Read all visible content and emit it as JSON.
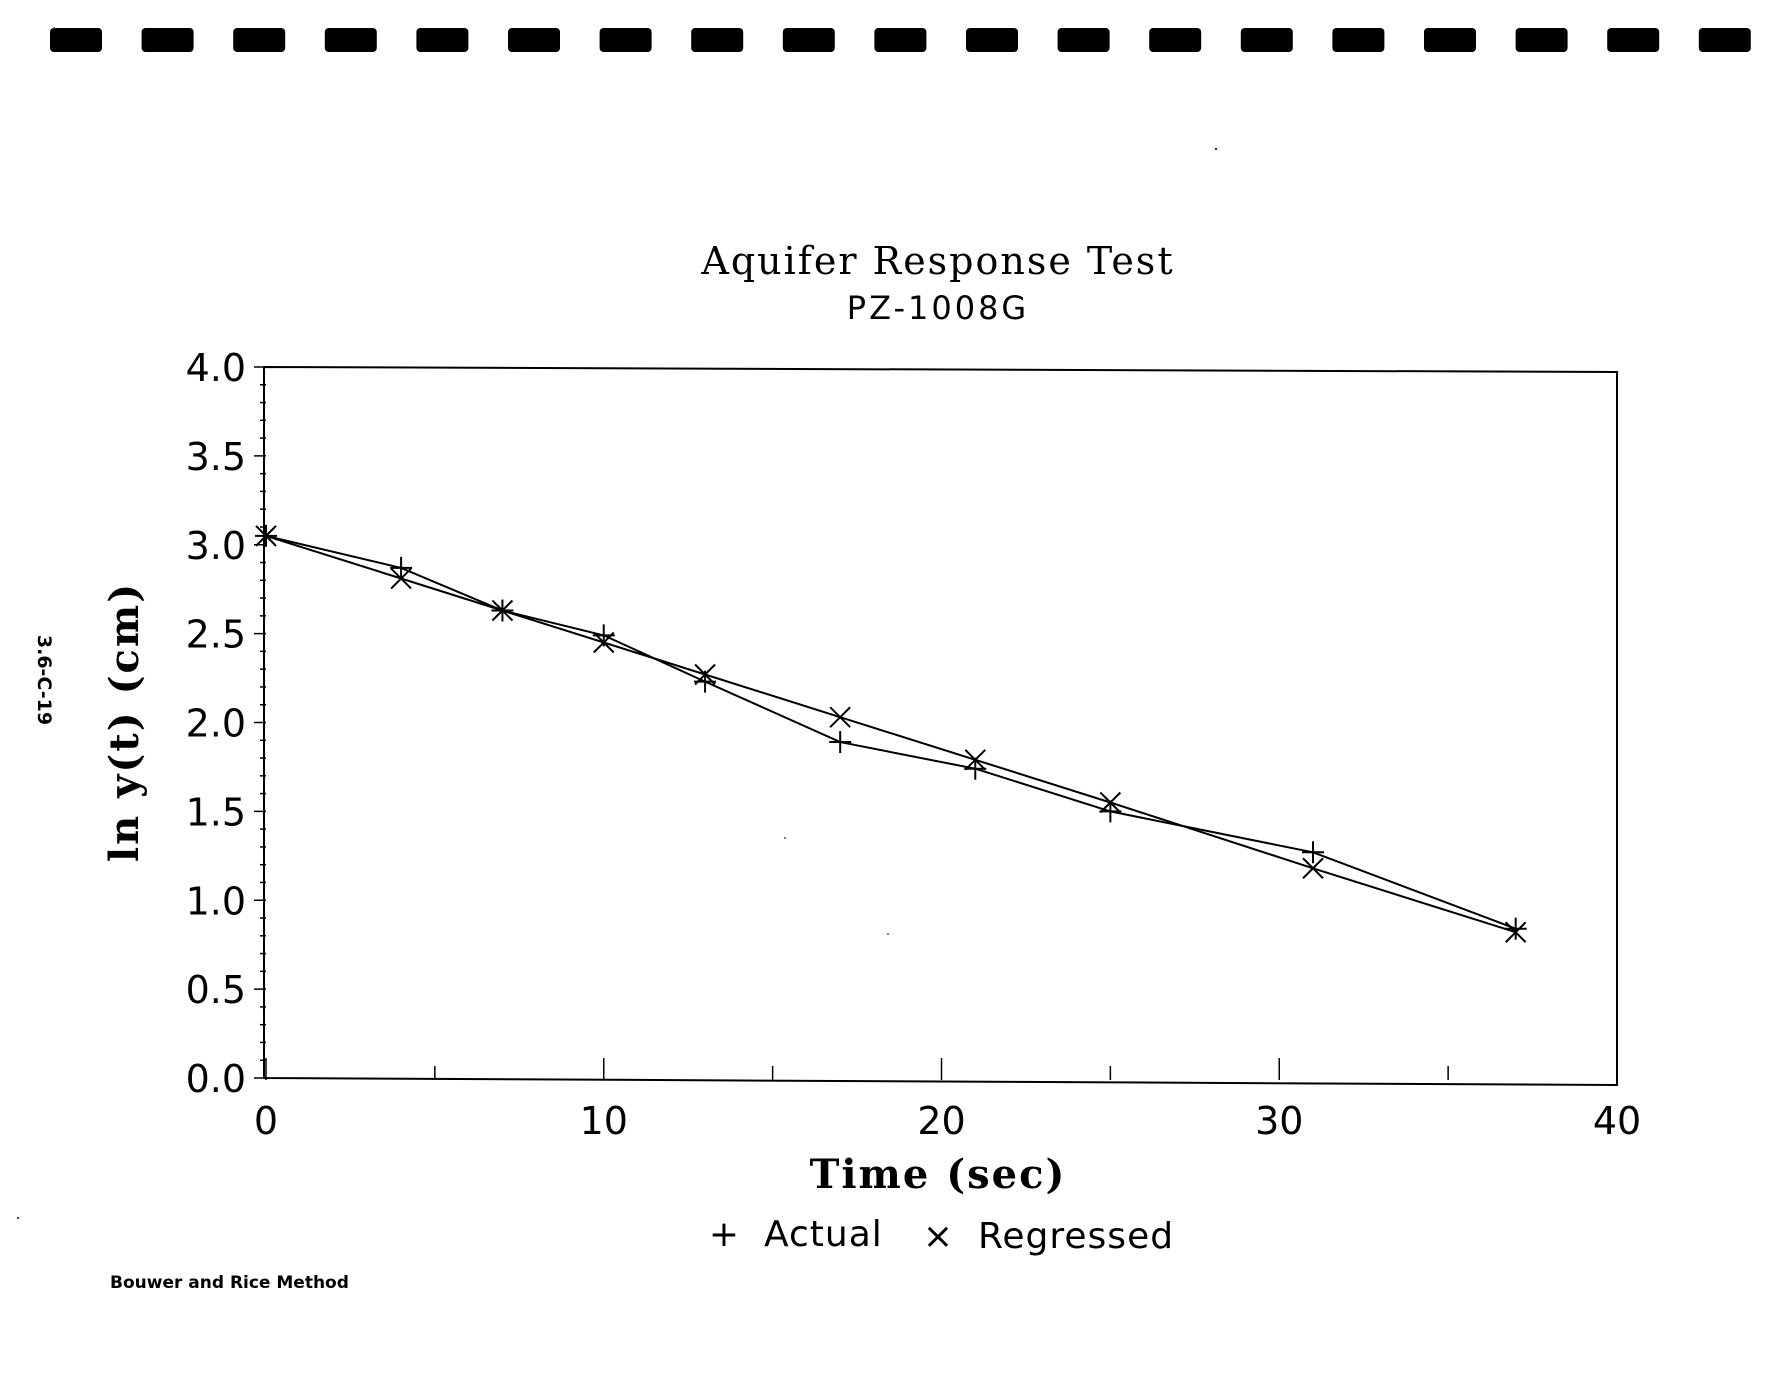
{
  "chart_data": {
    "type": "line",
    "title": "Aquifer Response Test",
    "subtitle": "PZ-1008G",
    "xlabel": "Time (sec)",
    "ylabel": "ln y(t) (cm)",
    "xlim": [
      0,
      40
    ],
    "ylim": [
      0.0,
      4.0
    ],
    "x_ticks": [
      "0",
      "10",
      "20",
      "30",
      "40"
    ],
    "y_ticks": [
      "0.0",
      "0.5",
      "1.0",
      "1.5",
      "2.0",
      "2.5",
      "3.0",
      "3.5",
      "4.0"
    ],
    "grid": false,
    "legend": "bottom-center",
    "series": [
      {
        "name": "Actual",
        "marker": "+",
        "x": [
          0,
          4,
          7,
          10,
          13,
          17,
          21,
          25,
          31,
          37
        ],
        "y": [
          3.05,
          2.87,
          2.63,
          2.49,
          2.23,
          1.89,
          1.74,
          1.5,
          1.27,
          0.84
        ]
      },
      {
        "name": "Regressed",
        "marker": "x",
        "x": [
          0,
          4,
          7,
          10,
          13,
          17,
          21,
          25,
          31,
          37
        ],
        "y": [
          3.05,
          2.81,
          2.63,
          2.45,
          2.27,
          2.03,
          1.79,
          1.55,
          1.18,
          0.82
        ]
      }
    ]
  },
  "legend": {
    "actual_symbol": "+",
    "actual_label": "Actual",
    "regressed_symbol": "×",
    "regressed_label": "Regressed"
  },
  "footer_note": "Bouwer and Rice Method",
  "side_code": "3.6-C-19"
}
